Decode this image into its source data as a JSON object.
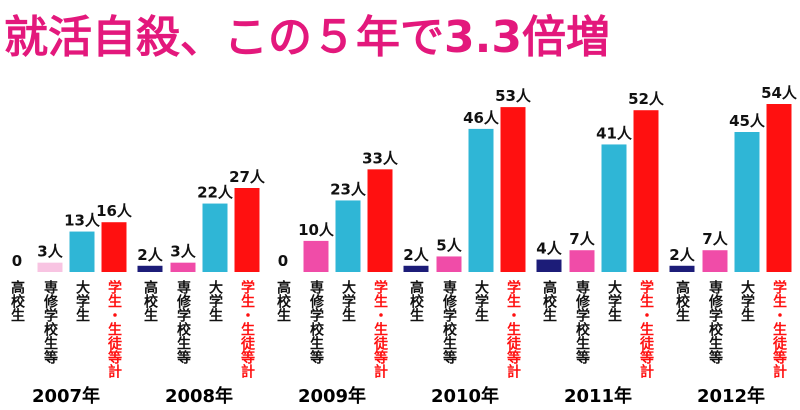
{
  "chart_data": {
    "type": "bar",
    "title": "就活自殺、この５年で3.3倍増",
    "categories": [
      "2007年",
      "2008年",
      "2009年",
      "2010年",
      "2011年",
      "2012年"
    ],
    "series": [
      {
        "name": "高校生",
        "color": "#1c1c78",
        "values": [
          0,
          2,
          0,
          2,
          4,
          2
        ],
        "value_labels": [
          "0",
          "2人",
          "0",
          "2人",
          "4人",
          "2人"
        ]
      },
      {
        "name": "専修学校生等",
        "color": "#f04ca8",
        "colors": [
          "#f8c4e2",
          "#f04ca8",
          "#f04ca8",
          "#f04ca8",
          "#f04ca8",
          "#f04ca8"
        ],
        "values": [
          3,
          3,
          10,
          5,
          7,
          7
        ],
        "value_labels": [
          "3人",
          "3人",
          "10人",
          "5人",
          "7人",
          "7人"
        ]
      },
      {
        "name": "大学生",
        "color": "#2fb6d6",
        "values": [
          13,
          22,
          23,
          46,
          41,
          45
        ],
        "value_labels": [
          "13人",
          "22人",
          "23人",
          "46人",
          "41人",
          "45人"
        ]
      },
      {
        "name": "学生・生徒等計",
        "color": "#ff1010",
        "label_color": "#ff1010",
        "values": [
          16,
          27,
          33,
          53,
          52,
          54
        ],
        "value_labels": [
          "16人",
          "27人",
          "33人",
          "53人",
          "52人",
          "54人"
        ]
      }
    ]
  }
}
